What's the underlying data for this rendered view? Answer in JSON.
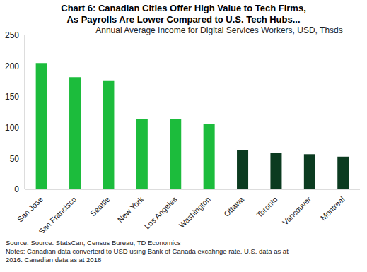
{
  "chart_data": {
    "type": "bar",
    "title": "Chart 6: Canadian Cities Offer High Value to Tech Firms,\nAs Payrolls Are Lower Compared to U.S. Tech Hubs...",
    "subtitle": "Annual Average Income for Digital Services Workers, USD, Thsds",
    "categories": [
      "San Jose",
      "San Francisco",
      "Seattle",
      "New York",
      "Los Angeles",
      "Washington",
      "Ottawa",
      "Toronto",
      "Vancouver",
      "Montreal"
    ],
    "values": [
      205,
      182,
      177,
      114,
      114,
      106,
      64,
      59,
      57,
      53
    ],
    "colors": [
      "#1cbc3c",
      "#1cbc3c",
      "#1cbc3c",
      "#1cbc3c",
      "#1cbc3c",
      "#1cbc3c",
      "#0b3b20",
      "#0b3b20",
      "#0b3b20",
      "#0b3b20"
    ],
    "ylim": [
      0,
      250
    ],
    "yticks": [
      0,
      50,
      100,
      150,
      200,
      250
    ],
    "grid": false,
    "annotations": [
      "Source: Source: StatsCan, Census Bureau, TD Economics",
      "Notes: Canadian data converterd to USD using Bank of Canada excahnge rate. U.S. data as at\n2016. Canadian data as at 2018"
    ]
  }
}
